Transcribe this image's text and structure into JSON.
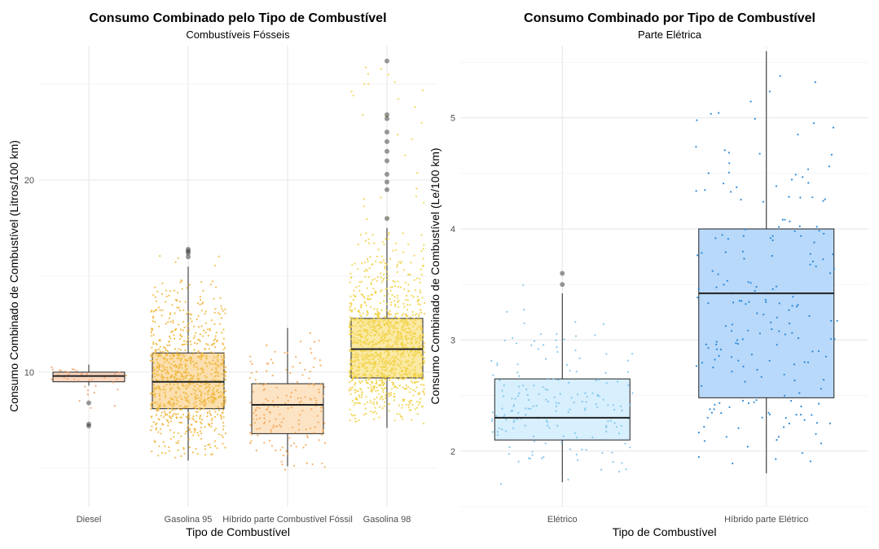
{
  "chart_data": [
    {
      "type": "box",
      "title": "Consumo Combinado pelo Tipo de Combustível",
      "subtitle": "Combustíveis Fósseis",
      "xlabel": "Tipo de Combustível",
      "ylabel": "Consumo Combinado de Combustível (Litros/100 km)",
      "ylim": [
        3.0,
        27.0
      ],
      "y_ticks": [
        10,
        20
      ],
      "categories": [
        "Diesel",
        "Gasolina 95",
        "Híbrido parte Combustível Fóssil",
        "Gasolina 98"
      ],
      "boxes": [
        {
          "category": "Diesel",
          "q1": 9.5,
          "median": 9.8,
          "q3": 10.0,
          "whisker_low": 9.3,
          "whisker_high": 10.4,
          "outliers": [
            8.4,
            7.3,
            7.2
          ],
          "points": 40,
          "jitter_min": 7.2,
          "jitter_max": 10.9,
          "fill": "#fcd7c0",
          "dot": "#f2a36b"
        },
        {
          "category": "Gasolina 95",
          "q1": 8.1,
          "median": 9.5,
          "q3": 11.0,
          "whisker_low": 5.4,
          "whisker_high": 15.5,
          "outliers": [
            16.0,
            16.2,
            16.3,
            16.4
          ],
          "points": 900,
          "jitter_min": 5.3,
          "jitter_max": 16.5,
          "fill": "#fbdfae",
          "dot": "#f0b840"
        },
        {
          "category": "Híbrido parte Combustível Fóssil",
          "q1": 6.8,
          "median": 8.3,
          "q3": 9.4,
          "whisker_low": 5.1,
          "whisker_high": 12.3,
          "outliers": [],
          "points": 170,
          "jitter_min": 4.9,
          "jitter_max": 12.6,
          "fill": "#fce3c4",
          "dot": "#f5a85a"
        },
        {
          "category": "Gasolina 98",
          "q1": 9.7,
          "median": 11.2,
          "q3": 12.8,
          "whisker_low": 7.1,
          "whisker_high": 17.5,
          "outliers": [
            18.0,
            19.5,
            19.9,
            20.3,
            21.0,
            21.5,
            22.0,
            22.5,
            23.2,
            23.4,
            26.2
          ],
          "points": 1300,
          "jitter_min": 7.1,
          "jitter_max": 26.3,
          "fill": "#fbeaa5",
          "dot": "#f2d34a"
        }
      ]
    },
    {
      "type": "box",
      "title": "Consumo Combinado por Tipo de Combustível",
      "subtitle": "Parte Elétrica",
      "xlabel": "Tipo de Combustível",
      "ylabel": "Consumo Combinado de Combustível (Le/100 km)",
      "ylim": [
        1.5,
        5.65
      ],
      "y_ticks": [
        2,
        3,
        4,
        5
      ],
      "categories": [
        "Elétrico",
        "Híbrido parte Elétrico"
      ],
      "boxes": [
        {
          "category": "Elétrico",
          "q1": 2.1,
          "median": 2.3,
          "q3": 2.65,
          "whisker_low": 1.72,
          "whisker_high": 3.42,
          "outliers": [
            3.5,
            3.6
          ],
          "points": 180,
          "jitter_min": 1.65,
          "jitter_max": 3.62,
          "fill": "#d8effd",
          "dot": "#7ac3ec"
        },
        {
          "category": "Híbrido parte Elétrico",
          "q1": 2.48,
          "median": 3.42,
          "q3": 4.0,
          "whisker_low": 1.8,
          "whisker_high": 5.6,
          "outliers": [],
          "points": 200,
          "jitter_min": 1.75,
          "jitter_max": 5.65,
          "fill": "#b8d9fa",
          "dot": "#1a7fd6"
        }
      ]
    }
  ]
}
